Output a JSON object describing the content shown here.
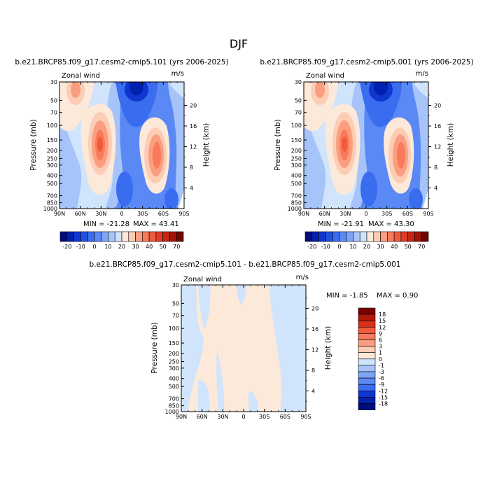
{
  "page_title": "DJF",
  "chart_data": [
    {
      "type": "heatmap",
      "title": "b.e21.BRCP85.f09_g17.cesm2-cmip5.101 (yrs 2006-2025)",
      "left_label": "Zonal wind",
      "units": "m/s",
      "ylabel": "Pressure (mb)",
      "ylabel2": "Height (km)",
      "x_ticks": [
        "90N",
        "60N",
        "30N",
        "0",
        "30S",
        "60S",
        "90S"
      ],
      "y_ticks": [
        "30",
        "50",
        "70",
        "100",
        "150",
        "200",
        "250",
        "300",
        "400",
        "500",
        "700",
        "850",
        "1000"
      ],
      "y2_ticks": [
        "20",
        "16",
        "12",
        "8",
        "4"
      ],
      "min_label": "MIN = -21.28",
      "max_label": "MAX = 43.41",
      "min": -21.28,
      "max": 43.41
    },
    {
      "type": "heatmap",
      "title": "b.e21.BRCP85.f09_g17.cesm2-cmip5.001 (yrs 2006-2025)",
      "left_label": "Zonal wind",
      "units": "m/s",
      "ylabel": "Pressure (mb)",
      "ylabel2": "Height (km)",
      "x_ticks": [
        "90N",
        "60N",
        "30N",
        "0",
        "30S",
        "60S",
        "90S"
      ],
      "y_ticks": [
        "30",
        "50",
        "70",
        "100",
        "150",
        "200",
        "250",
        "300",
        "400",
        "500",
        "700",
        "850",
        "1000"
      ],
      "y2_ticks": [
        "20",
        "16",
        "12",
        "8",
        "4"
      ],
      "min_label": "MIN = -21.91",
      "max_label": "MAX = 43.30",
      "min": -21.91,
      "max": 43.3
    },
    {
      "type": "heatmap",
      "title": "b.e21.BRCP85.f09_g17.cesm2-cmip5.101 - b.e21.BRCP85.f09_g17.cesm2-cmip5.001",
      "left_label": "Zonal wind",
      "units": "m/s",
      "ylabel": "Pressure (mb)",
      "ylabel2": "Height (km)",
      "x_ticks": [
        "90N",
        "60N",
        "30N",
        "0",
        "30S",
        "60S",
        "90S"
      ],
      "y_ticks": [
        "30",
        "50",
        "70",
        "100",
        "150",
        "200",
        "250",
        "300",
        "400",
        "500",
        "700",
        "850",
        "1000"
      ],
      "y2_ticks": [
        "20",
        "16",
        "12",
        "8",
        "4"
      ],
      "min_label": "MIN =  -1.85",
      "max_label": "MAX =   0.90",
      "min": -1.85,
      "max": 0.9
    }
  ],
  "colorbar_main": {
    "labels": [
      "-20",
      "-10",
      "0",
      "10",
      "20",
      "30",
      "40",
      "50",
      "70"
    ],
    "colors": [
      "#000c80",
      "#0020b0",
      "#1036d0",
      "#2050e0",
      "#3a6cf0",
      "#5a88f4",
      "#7ea4f6",
      "#a6c4fa",
      "#d0e4fc",
      "#fde9da",
      "#fcccb4",
      "#fb9e80",
      "#f87a5a",
      "#f05a3c",
      "#e03c24",
      "#c62814",
      "#9e1408",
      "#700600"
    ]
  },
  "colorbar_diff": {
    "labels": [
      "18",
      "15",
      "12",
      "9",
      "6",
      "3",
      "1",
      "0",
      "-1",
      "-3",
      "-6",
      "-9",
      "-12",
      "-15",
      "-18"
    ],
    "colors": [
      "#7a0000",
      "#b01808",
      "#d8301a",
      "#f05a3c",
      "#f87a5a",
      "#fb9e80",
      "#fcccb4",
      "#fde9da",
      "#d0e4fc",
      "#a6c4fa",
      "#7ea4f6",
      "#5a88f4",
      "#3a6cf0",
      "#1036d0",
      "#0020b0",
      "#000c80"
    ]
  }
}
